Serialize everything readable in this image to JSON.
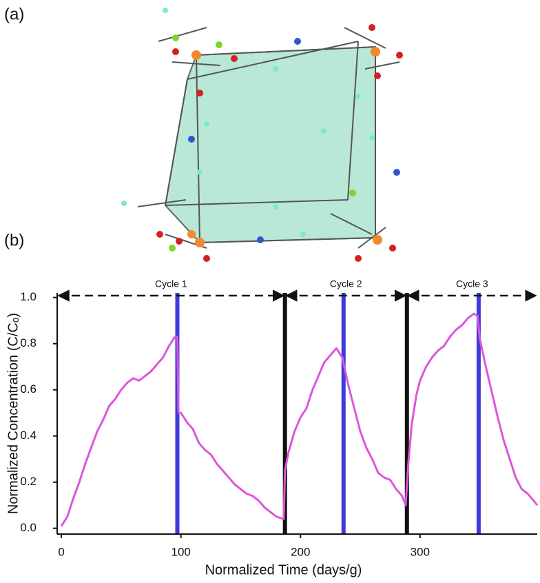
{
  "figure": {
    "panel_a": "(a)",
    "panel_b": "(b)"
  },
  "chart_data": {
    "type": "line",
    "xlabel": "Normalized Time (days/g)",
    "ylabel": "Normalized Concentration (C/Cₒ)",
    "xlim": [
      -3.5,
      398
    ],
    "ylim": [
      -0.025,
      1.02
    ],
    "xticks": [
      0,
      100,
      200,
      300
    ],
    "yticks": [
      {
        "value": 0,
        "label": "0.0"
      },
      0.2,
      0.4,
      0.6,
      0.8,
      {
        "value": 1,
        "label": "1.0"
      }
    ],
    "cycles": [
      {
        "label": "Cycle 1",
        "start": -3.5,
        "end": 187
      },
      {
        "label": "Cycle 2",
        "start": 187,
        "end": 289
      },
      {
        "label": "Cycle 3",
        "start": 289,
        "end": 398
      }
    ],
    "blue_lines": {
      "color": "#3b3bdc",
      "x": [
        97,
        236,
        349
      ]
    },
    "black_lines": {
      "color": "#111111",
      "x": [
        187,
        289
      ]
    },
    "series": [
      {
        "color": "#dd55dd",
        "x": [
          0,
          5,
          10,
          15,
          20,
          25,
          30,
          35,
          40,
          45,
          50,
          55,
          60,
          65,
          70,
          75,
          80,
          85,
          90,
          95,
          97,
          98,
          100,
          105,
          110,
          115,
          120,
          125,
          130,
          135,
          140,
          145,
          150,
          155,
          160,
          165,
          170,
          175,
          180,
          186,
          187,
          190,
          195,
          200,
          205,
          210,
          215,
          220,
          225,
          230,
          235,
          240,
          245,
          250,
          255,
          260,
          265,
          270,
          275,
          280,
          285,
          288,
          290,
          293,
          297,
          300,
          305,
          310,
          315,
          320,
          325,
          330,
          335,
          340,
          345,
          348,
          350,
          355,
          360,
          365,
          370,
          375,
          380,
          385,
          390,
          395,
          398
        ],
        "values": [
          0.01,
          0.05,
          0.13,
          0.2,
          0.28,
          0.35,
          0.42,
          0.47,
          0.53,
          0.56,
          0.6,
          0.63,
          0.65,
          0.64,
          0.66,
          0.68,
          0.71,
          0.74,
          0.79,
          0.83,
          0.83,
          0.5,
          0.5,
          0.46,
          0.43,
          0.37,
          0.34,
          0.32,
          0.28,
          0.25,
          0.22,
          0.19,
          0.17,
          0.15,
          0.14,
          0.12,
          0.09,
          0.07,
          0.05,
          0.04,
          0.25,
          0.33,
          0.42,
          0.48,
          0.52,
          0.6,
          0.66,
          0.72,
          0.75,
          0.78,
          0.74,
          0.62,
          0.52,
          0.42,
          0.35,
          0.3,
          0.24,
          0.22,
          0.21,
          0.17,
          0.14,
          0.1,
          0.27,
          0.45,
          0.58,
          0.64,
          0.7,
          0.74,
          0.77,
          0.79,
          0.83,
          0.86,
          0.88,
          0.91,
          0.93,
          0.92,
          0.82,
          0.7,
          0.59,
          0.48,
          0.38,
          0.3,
          0.22,
          0.17,
          0.15,
          0.12,
          0.1
        ]
      }
    ]
  }
}
